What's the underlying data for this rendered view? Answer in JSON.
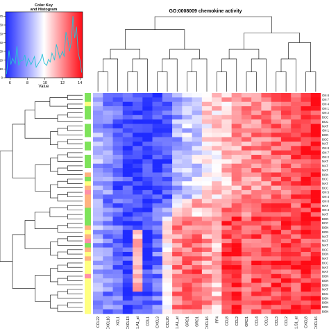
{
  "chart_data": {
    "type": "heatmap",
    "title": "GO:0008009 chemokine activity",
    "color_key": {
      "title_line1": "Color Key",
      "title_line2": "and Histogram",
      "xlabel": "Value",
      "x_ticks": [
        6,
        8,
        10,
        12,
        14
      ],
      "x_range": [
        5.5,
        14.3
      ],
      "y_ticks": [
        0,
        10,
        20,
        30,
        40,
        50,
        60,
        70
      ],
      "y_range": [
        0,
        75
      ],
      "colors": {
        "low": "#1f2bff",
        "mid": "#ffffff",
        "high": "#ff0a14"
      },
      "hist_color": "#27c2d6",
      "histogram": [
        [
          5.6,
          4
        ],
        [
          5.9,
          31
        ],
        [
          6.1,
          15
        ],
        [
          6.3,
          22
        ],
        [
          6.6,
          16
        ],
        [
          6.8,
          36
        ],
        [
          7.0,
          14
        ],
        [
          7.2,
          19
        ],
        [
          7.5,
          20
        ],
        [
          7.7,
          26
        ],
        [
          7.9,
          13
        ],
        [
          8.1,
          22
        ],
        [
          8.4,
          15
        ],
        [
          8.6,
          19
        ],
        [
          8.8,
          24
        ],
        [
          9.0,
          12
        ],
        [
          9.3,
          17
        ],
        [
          9.5,
          20
        ],
        [
          9.7,
          27
        ],
        [
          9.9,
          17
        ],
        [
          10.2,
          14
        ],
        [
          10.4,
          21
        ],
        [
          10.6,
          18
        ],
        [
          10.8,
          28
        ],
        [
          11.1,
          20
        ],
        [
          11.3,
          38
        ],
        [
          11.5,
          30
        ],
        [
          11.7,
          22
        ],
        [
          12.0,
          30
        ],
        [
          12.2,
          24
        ],
        [
          12.4,
          52
        ],
        [
          12.6,
          44
        ],
        [
          12.8,
          30
        ],
        [
          13.0,
          40
        ],
        [
          13.2,
          70
        ],
        [
          13.4,
          45
        ],
        [
          13.6,
          58
        ],
        [
          13.8,
          28
        ],
        [
          14.0,
          20
        ],
        [
          14.2,
          6
        ]
      ]
    },
    "columns": [
      "CCL22",
      "CXCL16",
      "XCL1",
      "CXCL13",
      "IB-14287.1.A1_at",
      "COL1",
      "CXCL3",
      "CCL20",
      "BI.6101.1.A1_at",
      "GRO1",
      "GRO1",
      "CXCL16",
      "PF4",
      "CCL8",
      "CCL2",
      "GRO1",
      "CCL4",
      "CCL3",
      "CCL3",
      "CCL2",
      "BI.6336.1.S1_at",
      "CXCL8",
      "CXCL16"
    ],
    "row_labels": [
      "ON 8",
      "ON 7",
      "ON 4",
      "ON 1",
      "ON 2",
      "BCC",
      "BCC",
      "MAT",
      "ON 1",
      "BON",
      "BCC",
      "MAT",
      "ON 8",
      "ON 7",
      "ON 2",
      "MAT",
      "MAT",
      "MAT",
      "BON",
      "BCC",
      "MAT",
      "BCC",
      "ON 5",
      "ON 4",
      "ON 8",
      "MAT",
      "ON 3",
      "MAT",
      "BON",
      "BCC",
      "BON",
      "BON",
      "MAT",
      "MAT",
      "MAT",
      "BCC",
      "BON",
      "MAT",
      "BCC",
      "MAT",
      "MAT",
      "BON",
      "BON",
      "BON",
      "MAT",
      "BCC",
      "BON",
      "BON",
      "BON",
      "BON"
    ],
    "row_groups": [
      "green",
      "green",
      "yellow",
      "green",
      "green",
      "green",
      "white",
      "green",
      "green",
      "green",
      "white",
      "green",
      "green",
      "white",
      "green",
      "green",
      "green",
      "white",
      "salmon",
      "green",
      "yellow",
      "salmon",
      "pink",
      "salmon",
      "salmon",
      "salmon",
      "green",
      "green",
      "green",
      "green",
      "salmon",
      "yellow",
      "salmon",
      "pink",
      "green",
      "salmon",
      "yellow",
      "salmon",
      "yellow",
      "yellow",
      "yellow",
      "pink",
      "yellow",
      "yellow",
      "yellow",
      "yellow",
      "yellow",
      "yellow",
      "yellow",
      "yellow"
    ],
    "group_colors": {
      "green": "#7ee35b",
      "yellow": "#ffff80",
      "salmon": "#ffb380",
      "pink": "#ff8fa8",
      "white": "#ffffff"
    }
  }
}
